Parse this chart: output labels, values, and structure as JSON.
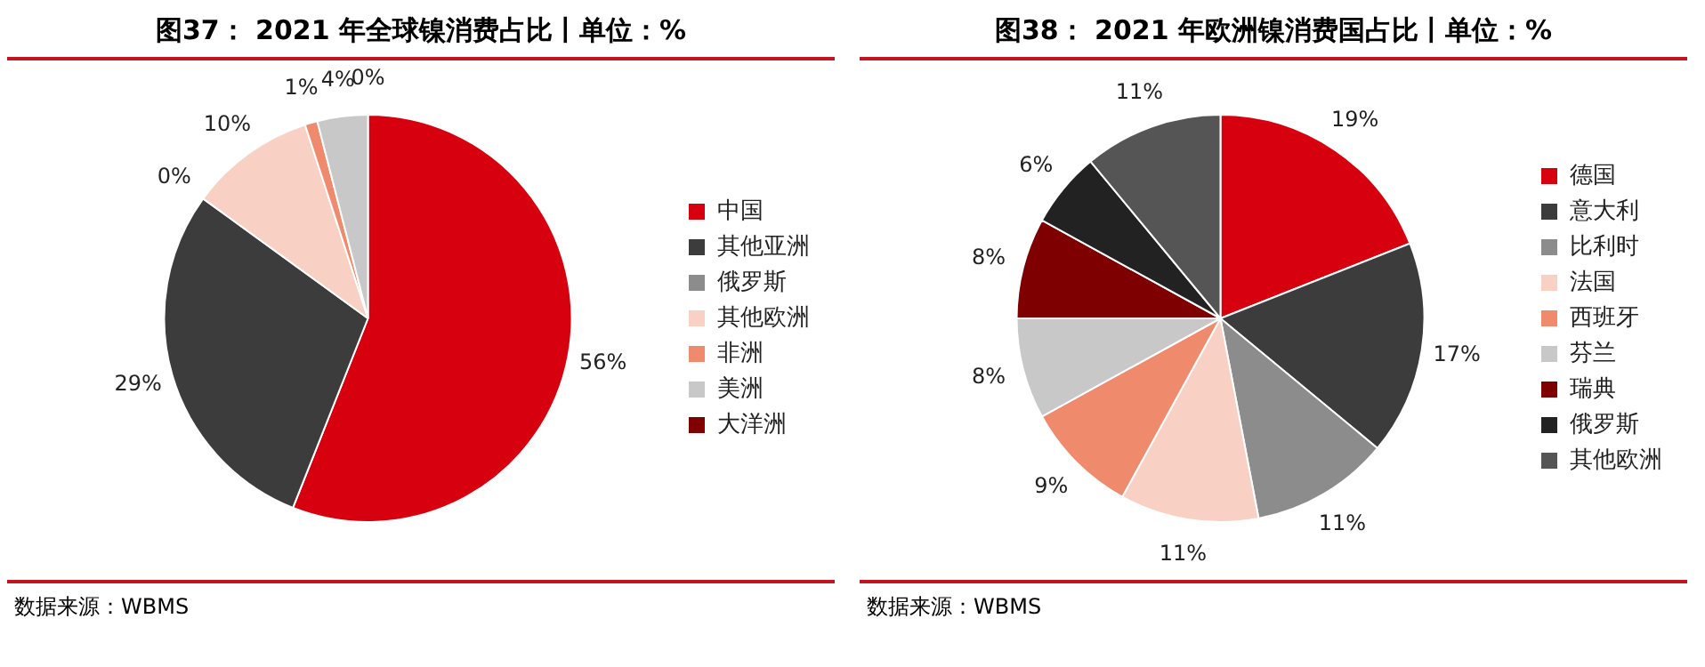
{
  "chart_data": [
    {
      "type": "pie",
      "title": "图37： 2021 年全球镍消费占比丨单位：%",
      "categories": [
        "中国",
        "其他亚洲",
        "俄罗斯",
        "其他欧洲",
        "非洲",
        "美洲",
        "大洋洲"
      ],
      "values": [
        56,
        29,
        0,
        10,
        1,
        4,
        0
      ],
      "value_labels": [
        "56%",
        "29%",
        "0%",
        "10%",
        "1%",
        "4%",
        "0%"
      ],
      "colors": [
        "#d7000f",
        "#3c3c3c",
        "#8c8c8c",
        "#f9d0c4",
        "#f08a6c",
        "#c8c8c8",
        "#7f0000"
      ],
      "legend": "right",
      "annotations": [
        "数据来源：WBMS"
      ]
    },
    {
      "type": "pie",
      "title": "图38： 2021 年欧洲镍消费国占比丨单位：%",
      "categories": [
        "德国",
        "意大利",
        "比利时",
        "法国",
        "西班牙",
        "芬兰",
        "瑞典",
        "俄罗斯",
        "其他欧洲"
      ],
      "values": [
        19,
        17,
        11,
        11,
        9,
        8,
        8,
        6,
        11
      ],
      "value_labels": [
        "19%",
        "17%",
        "11%",
        "11%",
        "9%",
        "8%",
        "8%",
        "6%",
        "11%"
      ],
      "colors": [
        "#d7000f",
        "#3c3c3c",
        "#8c8c8c",
        "#f9d0c4",
        "#f08a6c",
        "#c8c8c8",
        "#7f0000",
        "#222222",
        "#555555"
      ],
      "legend": "right",
      "annotations": [
        "数据来源：WBMS"
      ]
    }
  ]
}
